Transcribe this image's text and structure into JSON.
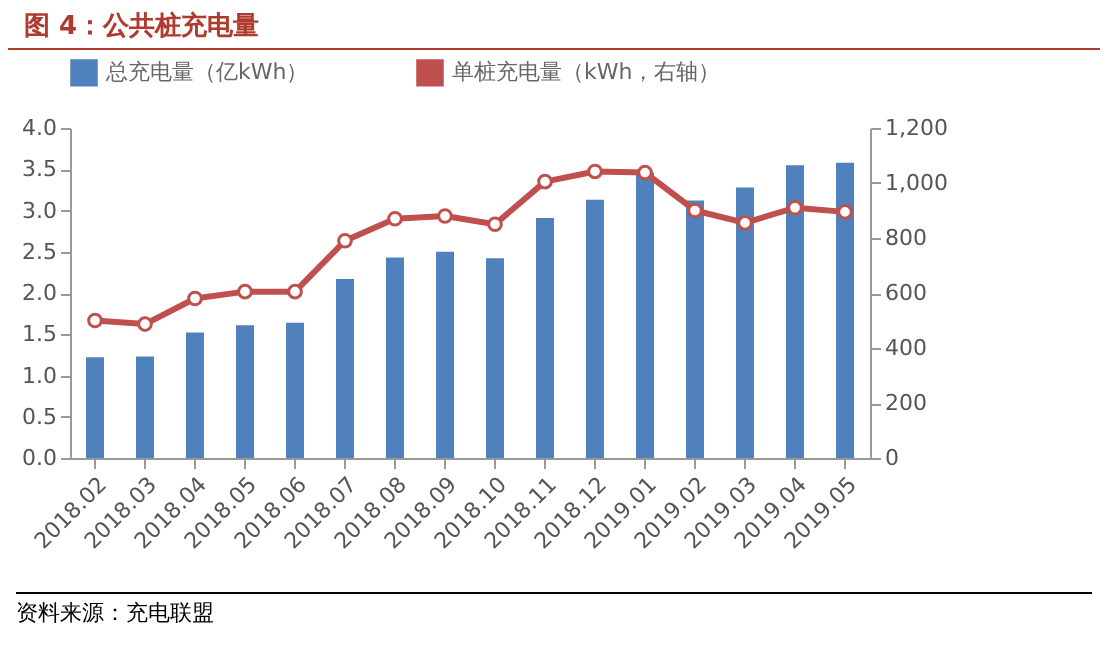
{
  "chart_data": {
    "type": "bar",
    "title": "图 4：公共桩充电量",
    "categories": [
      "2018.02",
      "2018.03",
      "2018.04",
      "2018.05",
      "2018.06",
      "2018.07",
      "2018.08",
      "2018.09",
      "2018.10",
      "2018.11",
      "2018.12",
      "2019.01",
      "2019.02",
      "2019.03",
      "2019.04",
      "2019.05"
    ],
    "series": [
      {
        "name": "总充电量（亿kWh）",
        "color": "#4f81bd",
        "values": [
          1.22,
          1.23,
          1.52,
          1.61,
          1.64,
          2.17,
          2.43,
          2.5,
          2.42,
          2.91,
          3.13,
          3.46,
          3.12,
          3.28,
          3.55,
          3.58
        ]
      },
      {
        "name": "单桩充电量（kWh，右轴）",
        "type": "line",
        "axis": "y2",
        "color": "#c0504d",
        "values": [
          500,
          487,
          580,
          605,
          605,
          790,
          870,
          880,
          850,
          1005,
          1042,
          1038,
          900,
          855,
          910,
          895
        ]
      }
    ],
    "ylim": [
      0,
      4
    ],
    "yticks": [
      {
        "value": 0,
        "label": "0.0"
      },
      0.5,
      {
        "value": 1,
        "label": "1.0"
      },
      1.5,
      {
        "value": 2,
        "label": "2.0"
      },
      2.5,
      {
        "value": 3,
        "label": "3.0"
      },
      3.5,
      {
        "value": 4,
        "label": "4.0"
      }
    ],
    "y2lim": [
      0,
      1200
    ],
    "y2ticks": [
      0,
      200,
      400,
      600,
      800,
      {
        "value": 1000,
        "label": "1,000"
      },
      {
        "value": 1200,
        "label": "1,200"
      }
    ],
    "grid": false,
    "legend": "top",
    "marker": "circle",
    "line_style": "solid",
    "annotations": [
      "资料来源：充电联盟"
    ]
  }
}
